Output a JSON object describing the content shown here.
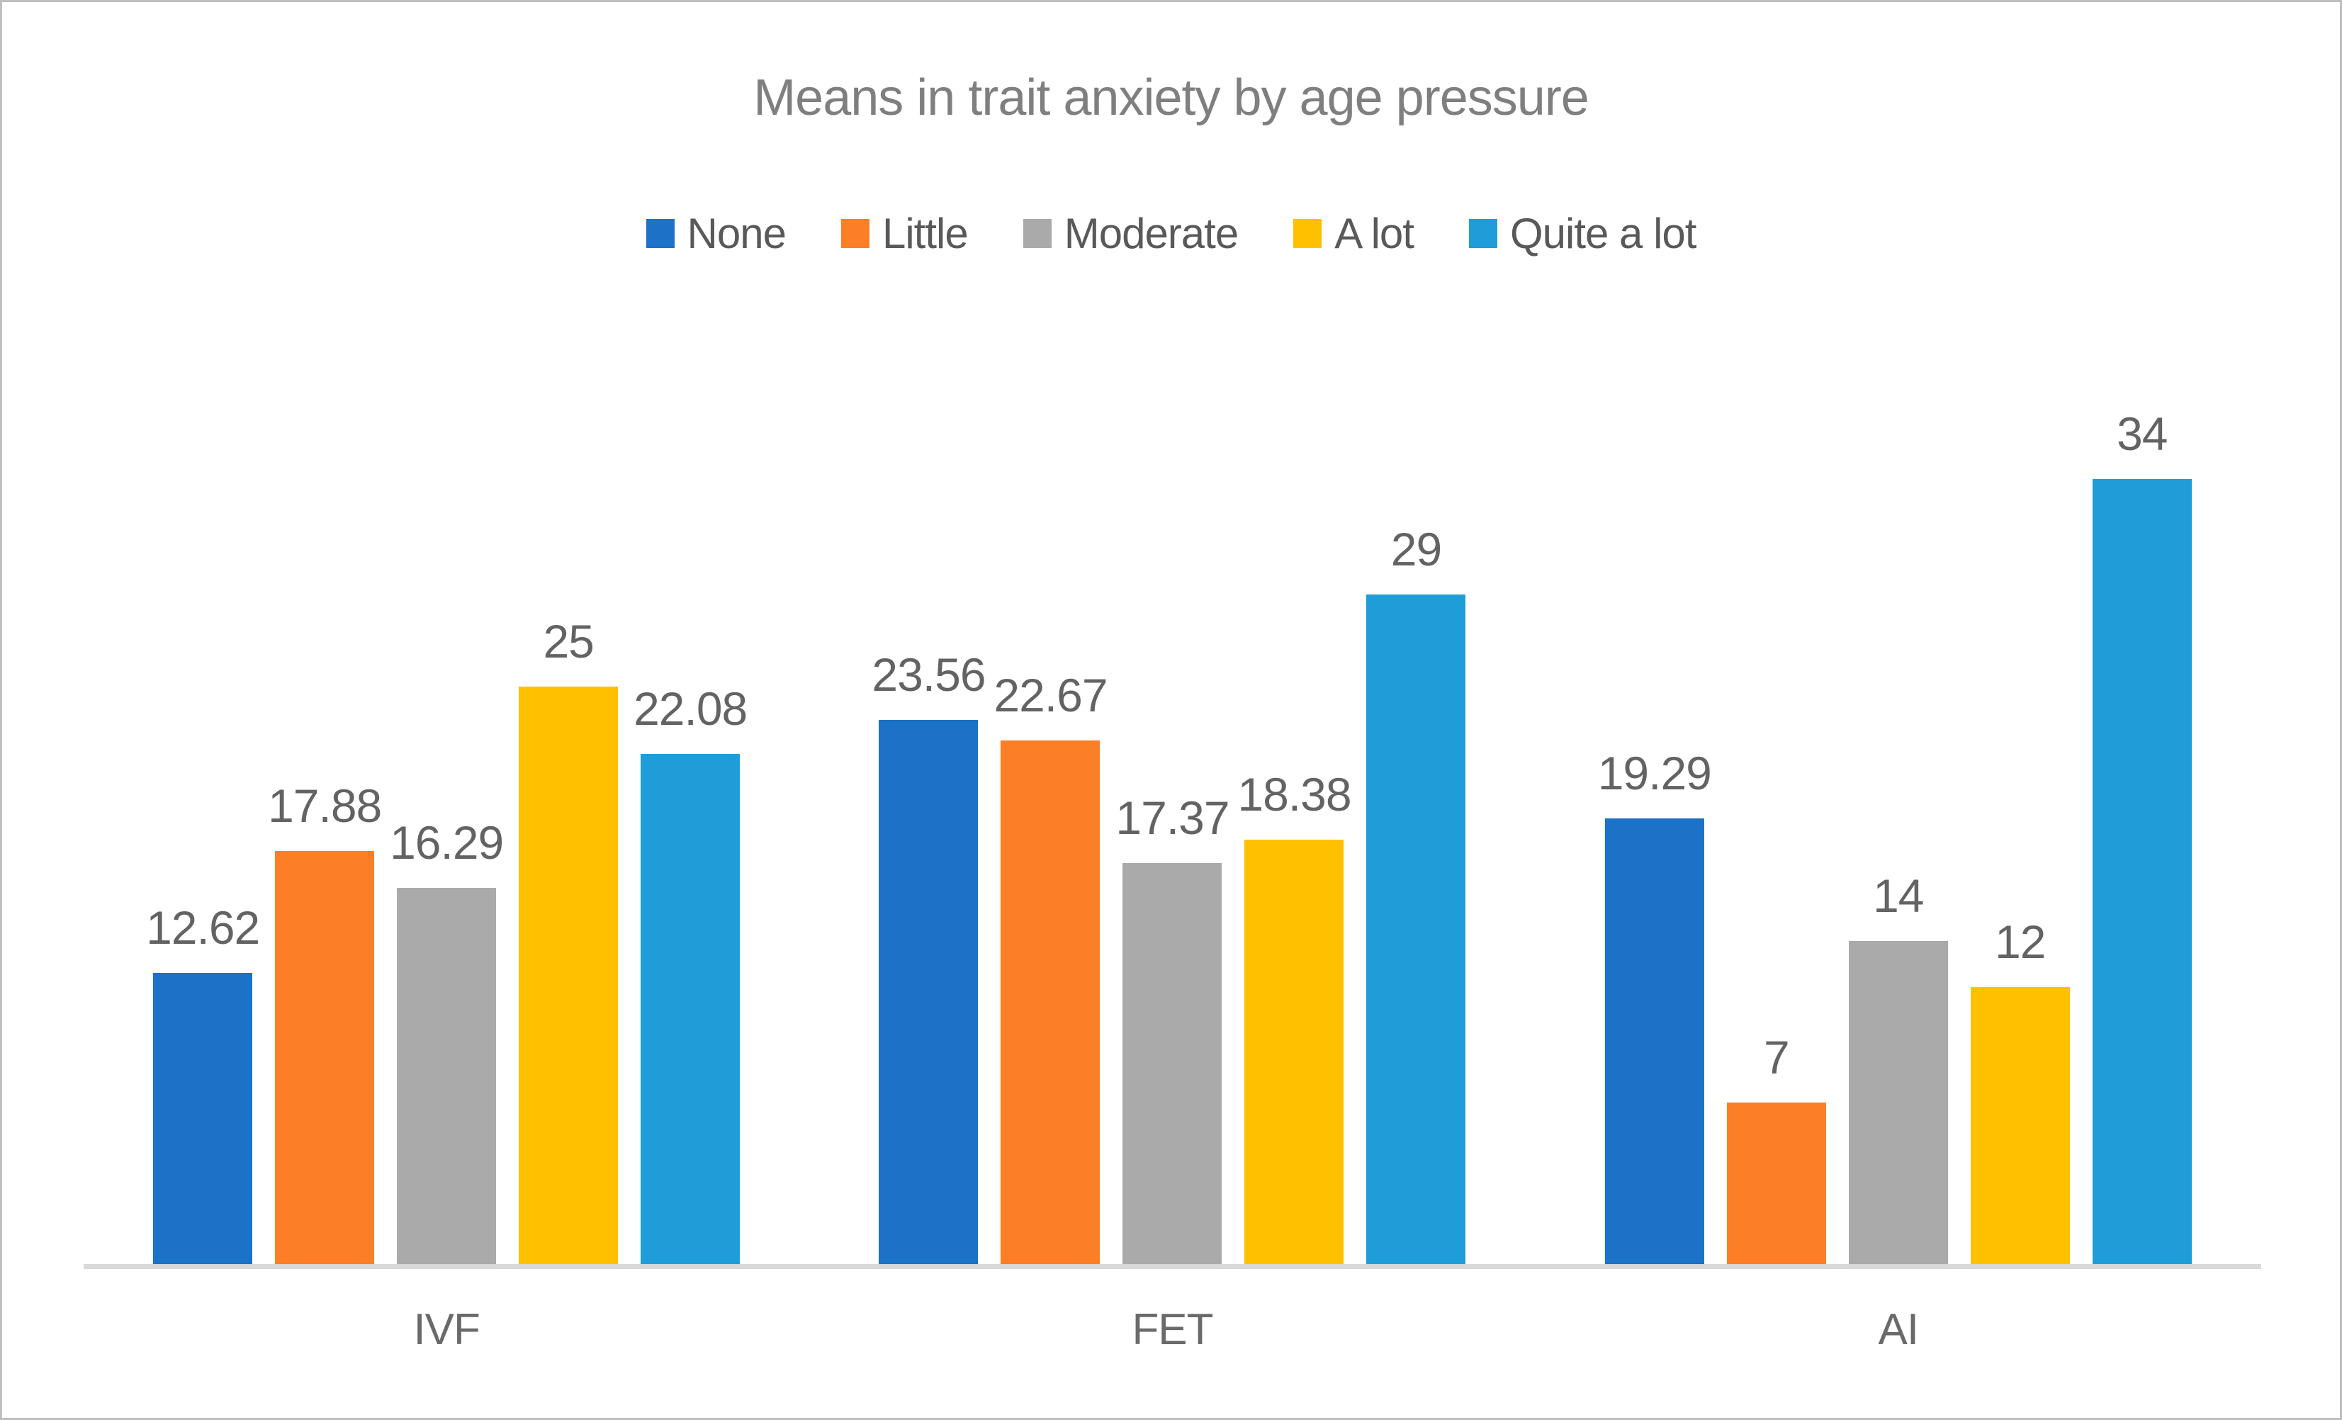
{
  "chart_data": {
    "type": "bar",
    "title": "Means in trait anxiety by age pressure",
    "categories": [
      "IVF",
      "FET",
      "AI"
    ],
    "series": [
      {
        "name": "None",
        "color": "#1B72C7",
        "values": [
          12.62,
          23.56,
          19.29
        ],
        "labels": [
          "12.62",
          "23.56",
          "19.29"
        ]
      },
      {
        "name": "Little",
        "color": "#FC7E26",
        "values": [
          17.88,
          22.67,
          7
        ],
        "labels": [
          "17.88",
          "22.67",
          "7"
        ]
      },
      {
        "name": "Moderate",
        "color": "#AAAAAA",
        "values": [
          16.29,
          17.37,
          14
        ],
        "labels": [
          "16.29",
          "17.37",
          "14"
        ]
      },
      {
        "name": "A lot",
        "color": "#FFC000",
        "values": [
          25,
          18.38,
          12
        ],
        "labels": [
          "25",
          "18.38",
          "12"
        ]
      },
      {
        "name": "Quite a lot",
        "color": "#1F9DD8",
        "values": [
          22.08,
          29,
          34
        ],
        "labels": [
          "22.08",
          "29",
          "34"
        ]
      }
    ],
    "xlabel": "",
    "ylabel": "",
    "y_axis_visible": false,
    "grid": false,
    "legend_position": "top",
    "data_labels": true
  },
  "colors": {
    "title_text": "#7f7f7f",
    "data_label_text": "#636363",
    "category_text": "#6a6a6a",
    "legend_text": "#595959",
    "axis_line": "#D9D9D9",
    "frame_border": "#BFBFBF",
    "background": "#FFFFFF"
  }
}
